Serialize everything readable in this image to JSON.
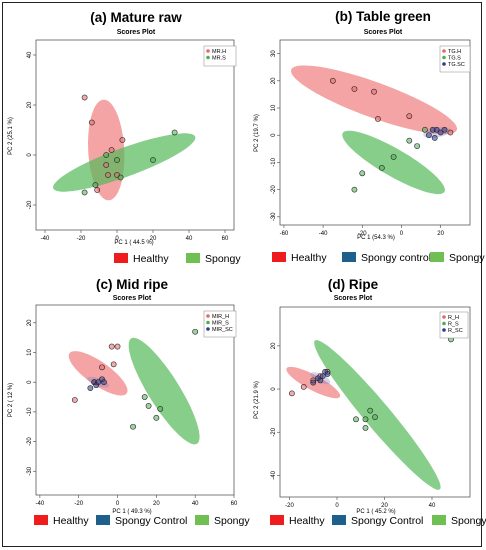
{
  "chart_data": [
    {
      "type": "scatter",
      "title": "(a) Mature raw",
      "subtitle": "Scores Plot",
      "xlabel": "PC 1 ( 44.5 %)",
      "ylabel": "PC 2 (25.1 %)",
      "xlim": [
        -45,
        65
      ],
      "ylim": [
        -30,
        46
      ],
      "xticks": [
        -40,
        -20,
        0,
        20,
        40,
        60
      ],
      "yticks": [
        -20,
        0,
        20,
        40
      ],
      "grid": false,
      "inner_legend": [
        "MR.H",
        "MR.S"
      ],
      "bottom_legend": [
        "Healthy",
        "Spongy"
      ],
      "series": [
        {
          "name": "MR.H",
          "color": "#e8686a",
          "points": [
            [
              -18,
              23
            ],
            [
              -14,
              13
            ],
            [
              -11,
              -14
            ],
            [
              -6,
              -4
            ],
            [
              -5,
              -8
            ],
            [
              -3,
              2
            ],
            [
              0,
              -8
            ],
            [
              3,
              6
            ]
          ],
          "ellipse": {
            "cx": -6,
            "cy": 2,
            "rx": 28,
            "ry": 10,
            "angle_deg": 93
          }
        },
        {
          "name": "MR.S",
          "color": "#4caf50",
          "points": [
            [
              -18,
              -15
            ],
            [
              -12,
              -12
            ],
            [
              -6,
              0
            ],
            [
              0,
              -2
            ],
            [
              2,
              -9
            ],
            [
              20,
              -2
            ],
            [
              32,
              9
            ]
          ],
          "ellipse": {
            "cx": 4,
            "cy": -3,
            "rx": 42,
            "ry": 8,
            "angle_deg": 20
          }
        }
      ]
    },
    {
      "type": "scatter",
      "title": "(b) Table green",
      "subtitle": "Scores Plot",
      "xlabel": "PC 1 (54.3 %)",
      "ylabel": "PC 2 (19.7 %)",
      "xlim": [
        -62,
        35
      ],
      "ylim": [
        -33,
        35
      ],
      "xticks": [
        -60,
        -40,
        -20,
        0,
        20
      ],
      "yticks": [
        -30,
        -20,
        -10,
        0,
        10,
        20,
        30
      ],
      "grid": false,
      "inner_legend": [
        "TG.H",
        "TG.S",
        "TG.SC"
      ],
      "bottom_legend": [
        "Healthy",
        "Spongy control",
        "Spongy"
      ],
      "series": [
        {
          "name": "TG.H",
          "color": "#e8686a",
          "points": [
            [
              -35,
              20
            ],
            [
              -24,
              17
            ],
            [
              -14,
              16
            ],
            [
              -12,
              6
            ],
            [
              4,
              7
            ],
            [
              25,
              1
            ]
          ],
          "ellipse": {
            "cx": -14,
            "cy": 13,
            "rx": 45,
            "ry": 9,
            "angle_deg": -20
          }
        },
        {
          "name": "TG.S",
          "color": "#4caf50",
          "points": [
            [
              -24,
              -20
            ],
            [
              -20,
              -14
            ],
            [
              -10,
              -12
            ],
            [
              -4,
              -8
            ],
            [
              8,
              -4
            ],
            [
              4,
              -2
            ],
            [
              12,
              2
            ]
          ],
          "ellipse": {
            "cx": -4,
            "cy": -10,
            "rx": 30,
            "ry": 7,
            "angle_deg": -30
          }
        },
        {
          "name": "TG.SC",
          "color": "#2e3b8f",
          "points": [
            [
              14,
              0
            ],
            [
              16,
              2
            ],
            [
              18,
              2
            ],
            [
              20,
              1
            ],
            [
              17,
              -1
            ],
            [
              22,
              2
            ]
          ],
          "ellipse": {
            "cx": 18,
            "cy": 1,
            "rx": 7,
            "ry": 2.5,
            "angle_deg": 10
          }
        }
      ]
    },
    {
      "type": "scatter",
      "title": "(c) Mid ripe",
      "subtitle": "Scores Plot",
      "xlabel": "PC 1 ( 49.3 %)",
      "ylabel": "PC 2 ( 12 %)",
      "xlim": [
        -42,
        60
      ],
      "ylim": [
        -38,
        26
      ],
      "xticks": [
        -40,
        -20,
        0,
        20,
        40,
        60
      ],
      "yticks": [
        -30,
        -20,
        -10,
        0,
        10,
        20
      ],
      "grid": false,
      "inner_legend": [
        "MIR_H",
        "MIR_S",
        "MIR_SC"
      ],
      "bottom_legend": [
        "Healthy",
        "Spongy Control",
        "Spongy"
      ],
      "series": [
        {
          "name": "MIR_H",
          "color": "#e8686a",
          "points": [
            [
              -22,
              -6
            ],
            [
              -12,
              0
            ],
            [
              -8,
              5
            ],
            [
              -2,
              6
            ],
            [
              -3,
              12
            ],
            [
              0,
              12
            ]
          ],
          "ellipse": {
            "cx": -10,
            "cy": 3,
            "rx": 18,
            "ry": 6,
            "angle_deg": -35
          }
        },
        {
          "name": "MIR_S",
          "color": "#4caf50",
          "points": [
            [
              8,
              -15
            ],
            [
              14,
              -5
            ],
            [
              16,
              -8
            ],
            [
              20,
              -12
            ],
            [
              22,
              -9
            ],
            [
              40,
              17
            ]
          ],
          "ellipse": {
            "cx": 24,
            "cy": -3,
            "rx": 32,
            "ry": 8,
            "angle_deg": -58
          }
        },
        {
          "name": "MIR_SC",
          "color": "#2e3b8f",
          "points": [
            [
              -14,
              -2
            ],
            [
              -12,
              0
            ],
            [
              -10,
              0
            ],
            [
              -8,
              1
            ],
            [
              -7,
              0
            ],
            [
              -11,
              -1
            ]
          ],
          "ellipse": {
            "cx": -10,
            "cy": 0,
            "rx": 6,
            "ry": 2,
            "angle_deg": -20
          }
        }
      ]
    },
    {
      "type": "scatter",
      "title": "(d) Ripe",
      "subtitle": "Scores Plot",
      "xlabel": "PC 1 ( 45.2 %)",
      "ylabel": "PC 2 (21.9 %)",
      "xlim": [
        -24,
        56
      ],
      "ylim": [
        -50,
        38
      ],
      "xticks": [
        -20,
        0,
        20,
        40
      ],
      "yticks": [
        -40,
        -20,
        0,
        20
      ],
      "grid": false,
      "inner_legend": [
        "R_H",
        "R_S",
        "R_SC"
      ],
      "bottom_legend": [
        "Healthy",
        "Spongy Control",
        "Spongy"
      ],
      "series": [
        {
          "name": "R_H",
          "color": "#e8686a",
          "points": [
            [
              -19,
              -2
            ],
            [
              -14,
              1
            ],
            [
              -10,
              4
            ],
            [
              -7,
              6
            ],
            [
              -4,
              8
            ]
          ],
          "ellipse": {
            "cx": -10,
            "cy": 3,
            "rx": 14,
            "ry": 3.5,
            "angle_deg": -28
          }
        },
        {
          "name": "R_S",
          "color": "#4caf50",
          "points": [
            [
              8,
              -14
            ],
            [
              12,
              -14
            ],
            [
              12,
              -18
            ],
            [
              14,
              -10
            ],
            [
              16,
              -13
            ],
            [
              48,
              23
            ]
          ],
          "ellipse": {
            "cx": 17,
            "cy": -12,
            "rx": 45,
            "ry": 6,
            "angle_deg": -50
          }
        },
        {
          "name": "R_SC",
          "color": "#2e3b8f",
          "points": [
            [
              -10,
              3
            ],
            [
              -8,
              5
            ],
            [
              -6,
              6
            ],
            [
              -5,
              8
            ],
            [
              -4,
              7
            ],
            [
              -7,
              4
            ]
          ],
          "ellipse": {
            "cx": -7,
            "cy": 5,
            "rx": 5,
            "ry": 2,
            "angle_deg": -25
          }
        }
      ]
    }
  ],
  "colors": {
    "healthy": "#e8686a",
    "healthy_legend": "#ee1c1c",
    "spongy": "#4caf50",
    "spongy_legend": "#6fbf52",
    "spongy_control": "#2e3b8f",
    "spongy_control_legend": "#1f5f8b"
  }
}
